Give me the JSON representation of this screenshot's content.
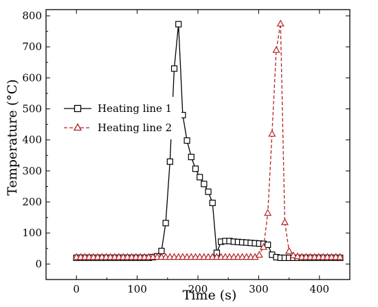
{
  "chart_data": {
    "type": "line",
    "xlabel": "Time (s)",
    "ylabel": "Temperature (°C)",
    "xlim": [
      -50,
      450
    ],
    "ylim": [
      -50,
      820
    ],
    "xticks": [
      0,
      100,
      200,
      300,
      400
    ],
    "yticks": [
      0,
      100,
      200,
      300,
      400,
      500,
      600,
      700,
      800
    ],
    "grid": false,
    "legend_position": "left-middle",
    "series": [
      {
        "name": "Heating line 1",
        "color": "#000000",
        "line_style": "solid",
        "marker": "square-open",
        "points": [
          [
            0,
            20
          ],
          [
            7,
            20
          ],
          [
            14,
            20
          ],
          [
            21,
            20
          ],
          [
            28,
            20
          ],
          [
            35,
            20
          ],
          [
            42,
            20
          ],
          [
            49,
            20
          ],
          [
            56,
            20
          ],
          [
            63,
            20
          ],
          [
            70,
            20
          ],
          [
            77,
            20
          ],
          [
            84,
            20
          ],
          [
            91,
            20
          ],
          [
            98,
            20
          ],
          [
            105,
            20
          ],
          [
            112,
            20
          ],
          [
            119,
            20
          ],
          [
            126,
            22
          ],
          [
            133,
            25
          ],
          [
            140,
            42
          ],
          [
            147,
            132
          ],
          [
            154,
            330
          ],
          [
            161,
            630
          ],
          [
            168,
            773
          ],
          [
            175,
            480
          ],
          [
            182,
            398
          ],
          [
            189,
            345
          ],
          [
            196,
            307
          ],
          [
            203,
            280
          ],
          [
            210,
            258
          ],
          [
            217,
            233
          ],
          [
            224,
            197
          ],
          [
            231,
            36
          ],
          [
            238,
            72
          ],
          [
            245,
            74
          ],
          [
            252,
            74
          ],
          [
            259,
            72
          ],
          [
            266,
            71
          ],
          [
            273,
            70
          ],
          [
            280,
            69
          ],
          [
            287,
            68
          ],
          [
            294,
            67
          ],
          [
            301,
            66
          ],
          [
            308,
            65
          ],
          [
            315,
            62
          ],
          [
            322,
            30
          ],
          [
            329,
            22
          ],
          [
            336,
            20
          ],
          [
            343,
            20
          ],
          [
            350,
            20
          ],
          [
            357,
            20
          ],
          [
            364,
            20
          ],
          [
            371,
            20
          ],
          [
            378,
            20
          ],
          [
            385,
            20
          ],
          [
            392,
            20
          ],
          [
            399,
            20
          ],
          [
            406,
            20
          ],
          [
            413,
            20
          ],
          [
            420,
            20
          ],
          [
            427,
            20
          ],
          [
            434,
            20
          ]
        ]
      },
      {
        "name": "Heating line 2",
        "color": "#b22222",
        "line_style": "dashed",
        "marker": "triangle-open",
        "points": [
          [
            0,
            23
          ],
          [
            7,
            23
          ],
          [
            14,
            23
          ],
          [
            21,
            23
          ],
          [
            28,
            23
          ],
          [
            35,
            23
          ],
          [
            42,
            23
          ],
          [
            49,
            23
          ],
          [
            56,
            23
          ],
          [
            63,
            23
          ],
          [
            70,
            23
          ],
          [
            77,
            23
          ],
          [
            84,
            23
          ],
          [
            91,
            23
          ],
          [
            98,
            23
          ],
          [
            105,
            23
          ],
          [
            112,
            23
          ],
          [
            119,
            23
          ],
          [
            126,
            23
          ],
          [
            133,
            23
          ],
          [
            140,
            23
          ],
          [
            147,
            23
          ],
          [
            154,
            23
          ],
          [
            161,
            23
          ],
          [
            168,
            23
          ],
          [
            175,
            23
          ],
          [
            182,
            23
          ],
          [
            189,
            23
          ],
          [
            196,
            23
          ],
          [
            203,
            23
          ],
          [
            210,
            23
          ],
          [
            217,
            23
          ],
          [
            224,
            23
          ],
          [
            231,
            23
          ],
          [
            238,
            23
          ],
          [
            245,
            23
          ],
          [
            252,
            23
          ],
          [
            259,
            23
          ],
          [
            266,
            23
          ],
          [
            273,
            23
          ],
          [
            280,
            23
          ],
          [
            287,
            23
          ],
          [
            294,
            23
          ],
          [
            301,
            30
          ],
          [
            308,
            55
          ],
          [
            315,
            165
          ],
          [
            322,
            420
          ],
          [
            329,
            690
          ],
          [
            336,
            775
          ],
          [
            343,
            135
          ],
          [
            350,
            42
          ],
          [
            357,
            28
          ],
          [
            364,
            25
          ],
          [
            371,
            23
          ],
          [
            378,
            23
          ],
          [
            385,
            23
          ],
          [
            392,
            23
          ],
          [
            399,
            23
          ],
          [
            406,
            23
          ],
          [
            413,
            23
          ],
          [
            420,
            23
          ],
          [
            427,
            23
          ],
          [
            434,
            23
          ]
        ]
      }
    ]
  }
}
